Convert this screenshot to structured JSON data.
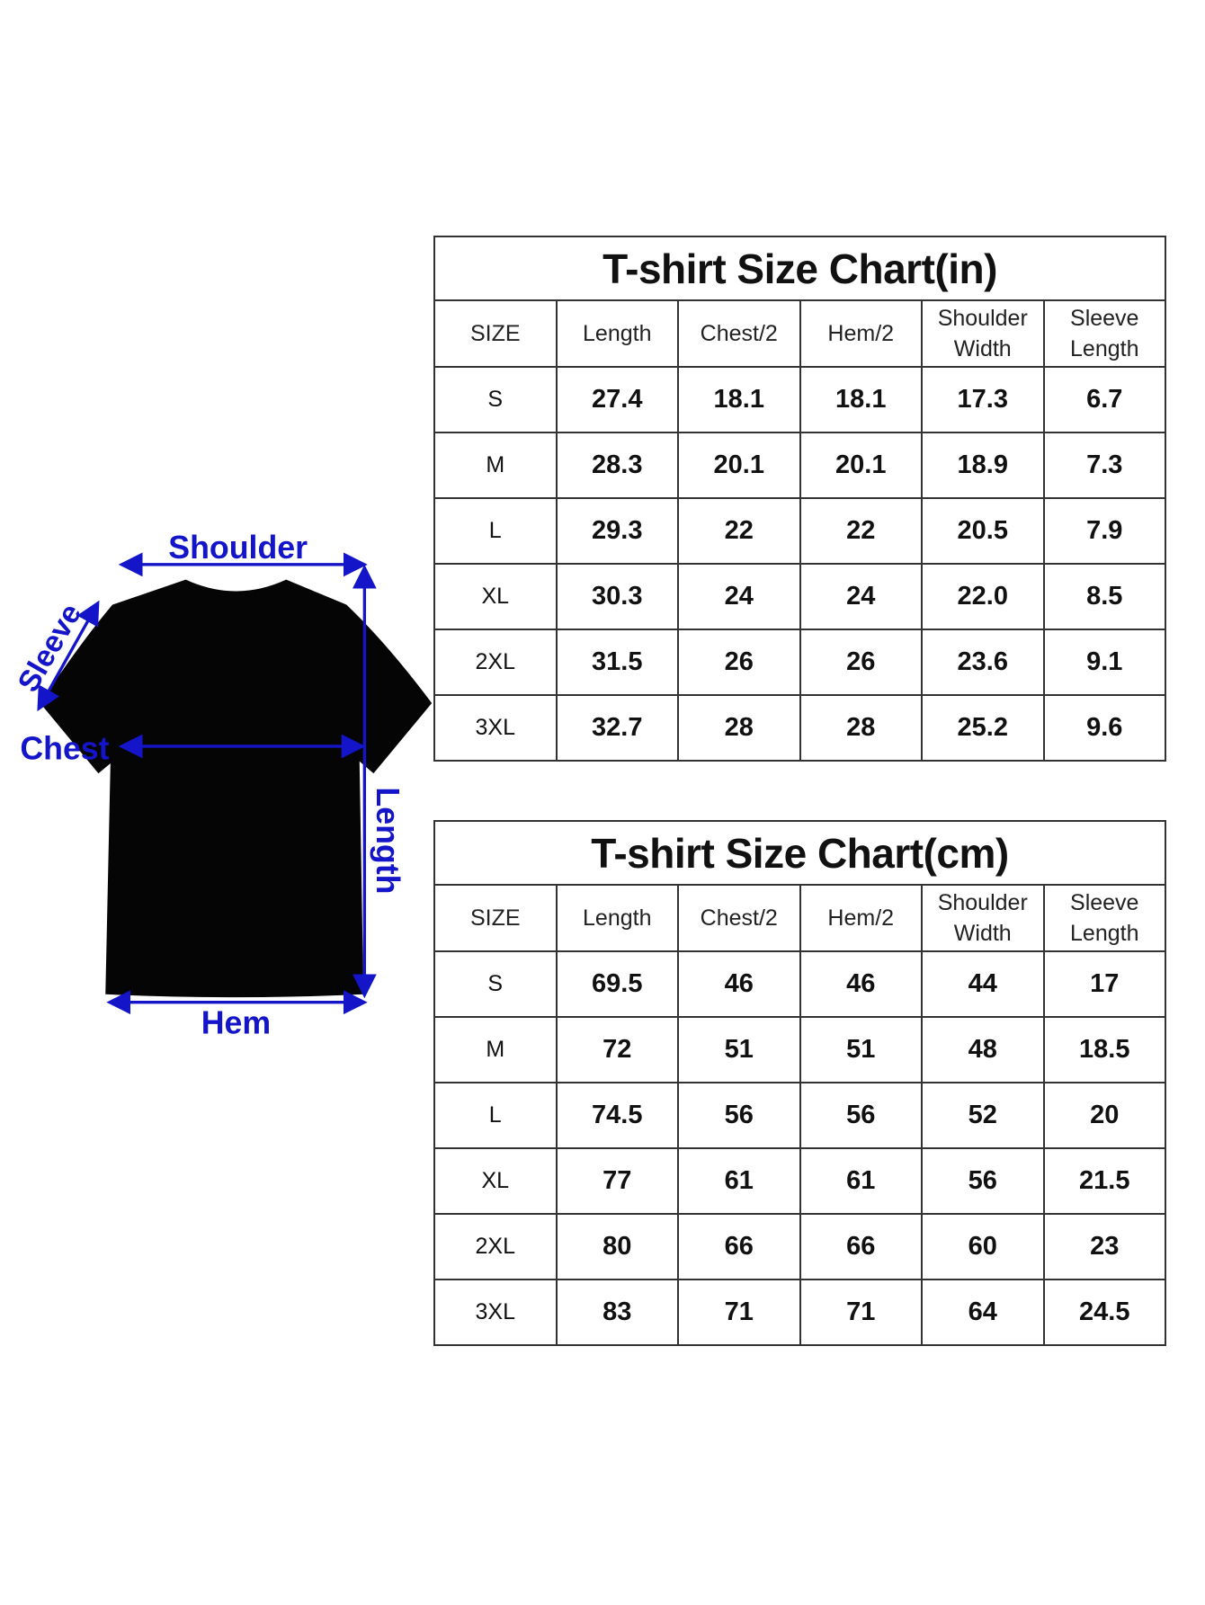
{
  "diagram": {
    "labels": {
      "shoulder": "Shoulder",
      "sleeve": "Sleeve",
      "chest": "Chest",
      "length": "Length",
      "hem": "Hem"
    },
    "colors": {
      "arrow": "#1414c8",
      "shirt": "#000000"
    }
  },
  "tables": [
    {
      "title": "T-shirt Size Chart(in)",
      "headers": [
        "SIZE",
        "Length",
        "Chest/2",
        "Hem/2",
        "Shoulder\nWidth",
        "Sleeve\nLength"
      ],
      "rows": [
        [
          "S",
          "27.4",
          "18.1",
          "18.1",
          "17.3",
          "6.7"
        ],
        [
          "M",
          "28.3",
          "20.1",
          "20.1",
          "18.9",
          "7.3"
        ],
        [
          "L",
          "29.3",
          "22",
          "22",
          "20.5",
          "7.9"
        ],
        [
          "XL",
          "30.3",
          "24",
          "24",
          "22.0",
          "8.5"
        ],
        [
          "2XL",
          "31.5",
          "26",
          "26",
          "23.6",
          "9.1"
        ],
        [
          "3XL",
          "32.7",
          "28",
          "28",
          "25.2",
          "9.6"
        ]
      ]
    },
    {
      "title": "T-shirt Size Chart(cm)",
      "headers": [
        "SIZE",
        "Length",
        "Chest/2",
        "Hem/2",
        "Shoulder\nWidth",
        "Sleeve\nLength"
      ],
      "rows": [
        [
          "S",
          "69.5",
          "46",
          "46",
          "44",
          "17"
        ],
        [
          "M",
          "72",
          "51",
          "51",
          "48",
          "18.5"
        ],
        [
          "L",
          "74.5",
          "56",
          "56",
          "52",
          "20"
        ],
        [
          "XL",
          "77",
          "61",
          "61",
          "56",
          "21.5"
        ],
        [
          "2XL",
          "80",
          "66",
          "66",
          "60",
          "23"
        ],
        [
          "3XL",
          "83",
          "71",
          "71",
          "64",
          "24.5"
        ]
      ]
    }
  ]
}
